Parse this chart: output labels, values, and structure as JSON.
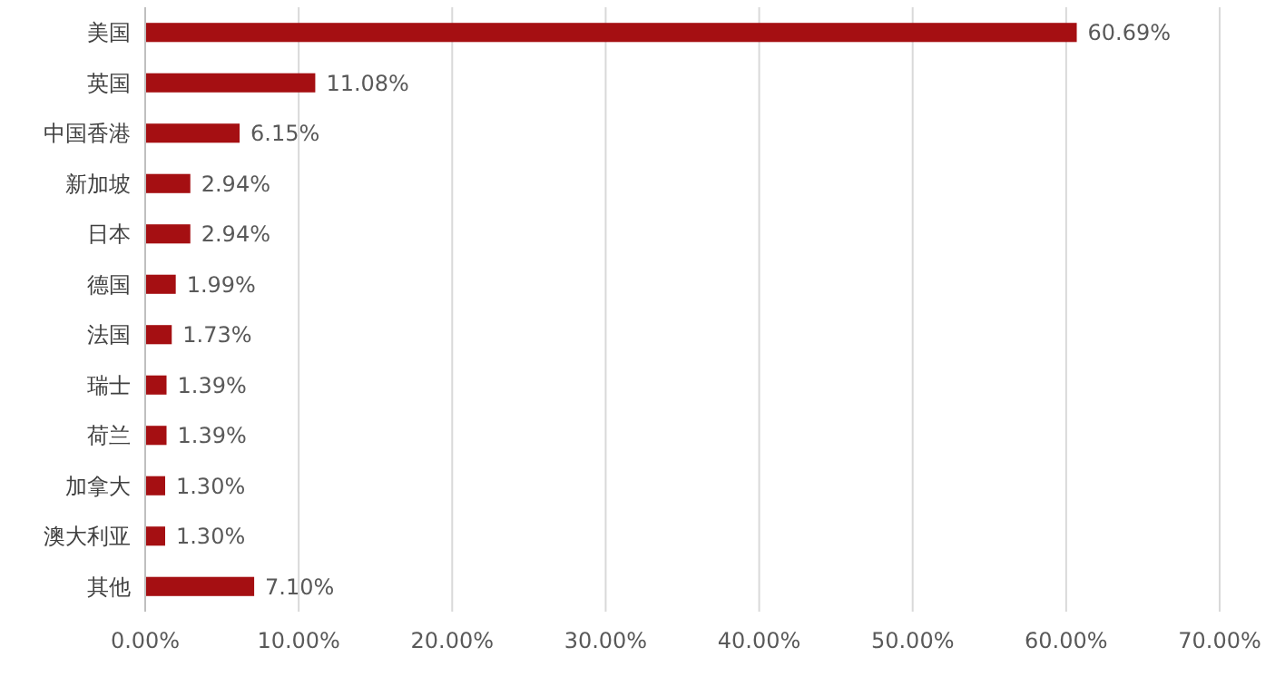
{
  "chart_data": {
    "type": "bar",
    "orientation": "horizontal",
    "categories": [
      "美国",
      "英国",
      "中国香港",
      "新加坡",
      "日本",
      "德国",
      "法国",
      "瑞士",
      "荷兰",
      "加拿大",
      "澳大利亚",
      "其他"
    ],
    "values": [
      60.69,
      11.08,
      6.15,
      2.94,
      2.94,
      1.99,
      1.73,
      1.39,
      1.39,
      1.3,
      1.3,
      7.1
    ],
    "value_labels": [
      "60.69%",
      "11.08%",
      "6.15%",
      "2.94%",
      "2.94%",
      "1.99%",
      "1.73%",
      "1.39%",
      "1.39%",
      "1.30%",
      "1.30%",
      "7.10%"
    ],
    "color": "#a50f12",
    "xlim": [
      0,
      70
    ],
    "xticks": [
      {
        "value": 0,
        "label": "0.00%"
      },
      {
        "value": 10,
        "label": "10.00%"
      },
      {
        "value": 20,
        "label": "20.00%"
      },
      {
        "value": 30,
        "label": "30.00%"
      },
      {
        "value": 40,
        "label": "40.00%"
      },
      {
        "value": 50,
        "label": "50.00%"
      },
      {
        "value": 60,
        "label": "60.00%"
      },
      {
        "value": 70,
        "label": "70.00%"
      }
    ],
    "grid": "x"
  }
}
